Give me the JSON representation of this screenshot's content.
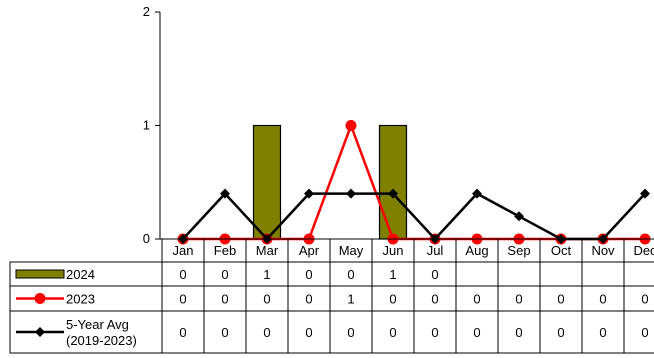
{
  "chart_data": {
    "type": "bar+line",
    "title": "",
    "xlabel": "",
    "ylabel": "",
    "ylim": [
      0,
      2
    ],
    "yticks": [
      0,
      1,
      2
    ],
    "categories": [
      "Jan",
      "Feb",
      "Mar",
      "Apr",
      "May",
      "Jun",
      "Jul",
      "Aug",
      "Sep",
      "Oct",
      "Nov",
      "Dec"
    ],
    "series": [
      {
        "name": "2024",
        "kind": "bar",
        "color": "#808000",
        "values": [
          0,
          0,
          1,
          0,
          0,
          1,
          0,
          null,
          null,
          null,
          null,
          null
        ],
        "table_values": [
          "0",
          "0",
          "1",
          "0",
          "0",
          "1",
          "0",
          "",
          "",
          "",
          "",
          ""
        ]
      },
      {
        "name": "2023",
        "kind": "line",
        "marker": "circle",
        "color": "#ff0000",
        "values": [
          0,
          0,
          0,
          0,
          1,
          0,
          0,
          0,
          0,
          0,
          0,
          0
        ],
        "table_values": [
          "0",
          "0",
          "0",
          "0",
          "1",
          "0",
          "0",
          "0",
          "0",
          "0",
          "0",
          "0"
        ]
      },
      {
        "name": "5-Year Avg",
        "name_line2": "(2019-2023)",
        "kind": "line",
        "marker": "diamond",
        "color": "#000000",
        "values": [
          0,
          0.4,
          0,
          0.4,
          0.4,
          0.4,
          0,
          0.4,
          0.2,
          0,
          0,
          0.4
        ],
        "table_values": [
          "0",
          "0",
          "0",
          "0",
          "0",
          "0",
          "0",
          "0",
          "0",
          "0",
          "0",
          "0"
        ]
      }
    ],
    "legend": "data-table-left",
    "grid": false
  }
}
